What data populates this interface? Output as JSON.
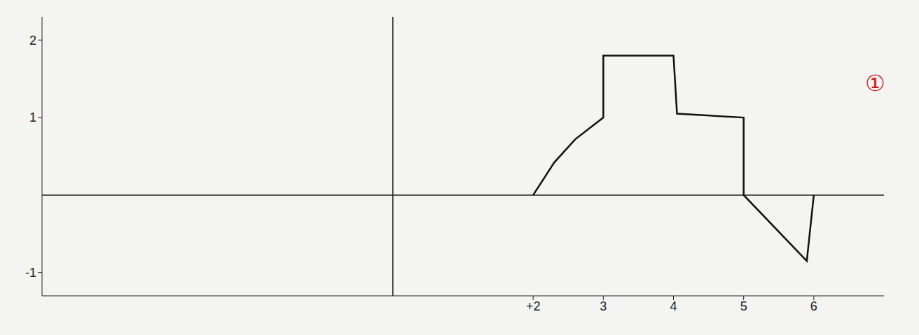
{
  "chart_data": {
    "type": "line",
    "x": [
      2,
      2.3,
      2.6,
      3,
      3,
      4,
      4.05,
      5,
      5,
      5.9,
      6
    ],
    "values": [
      0,
      0.42,
      0.72,
      1,
      1.8,
      1.8,
      1.05,
      1,
      0,
      -0.85,
      0
    ],
    "color": "#111111",
    "xlim": [
      -5,
      7
    ],
    "xticks": [
      {
        "value": 2,
        "label": "+2"
      },
      3,
      4,
      5,
      6
    ],
    "ylim": [
      -1.3,
      2.3
    ],
    "yticks": [
      -1,
      1,
      2
    ],
    "grid": false,
    "annotations": [
      "①"
    ]
  }
}
